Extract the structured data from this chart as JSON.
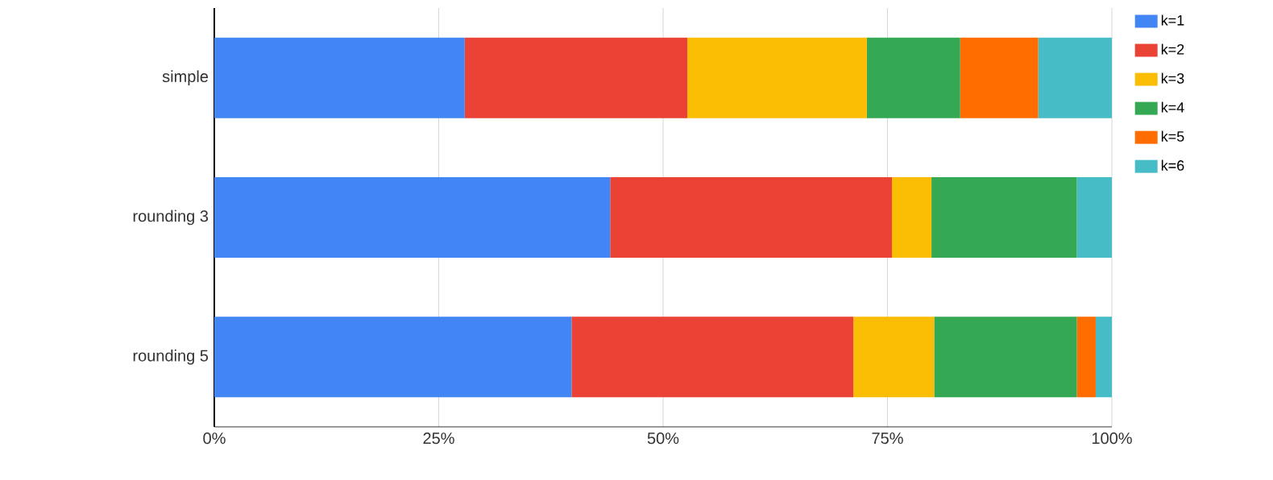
{
  "chart_data": {
    "type": "bar",
    "orientation": "horizontal",
    "stacked": true,
    "categories": [
      "simple",
      "rounding 3",
      "rounding 5"
    ],
    "series": [
      {
        "name": "k=1",
        "color": "#4285f4",
        "values": [
          27.9,
          44.1,
          39.8
        ]
      },
      {
        "name": "k=2",
        "color": "#ea4335",
        "values": [
          24.8,
          31.4,
          31.4
        ]
      },
      {
        "name": "k=3",
        "color": "#fbbc04",
        "values": [
          20.0,
          4.4,
          9.0
        ]
      },
      {
        "name": "k=4",
        "color": "#34a853",
        "values": [
          10.4,
          16.2,
          15.9
        ]
      },
      {
        "name": "k=5",
        "color": "#ff6d01",
        "values": [
          8.7,
          0,
          2.1
        ]
      },
      {
        "name": "k=6",
        "color": "#46bdc6",
        "values": [
          8.2,
          3.9,
          1.8
        ]
      }
    ],
    "xlim": [
      0,
      100
    ],
    "xticks": [
      {
        "value": 0,
        "label": "0%"
      },
      {
        "value": 25,
        "label": "25%"
      },
      {
        "value": 50,
        "label": "50%"
      },
      {
        "value": 75,
        "label": "75%"
      },
      {
        "value": 100,
        "label": "100%"
      }
    ],
    "grid": "x",
    "legend": "top right"
  }
}
